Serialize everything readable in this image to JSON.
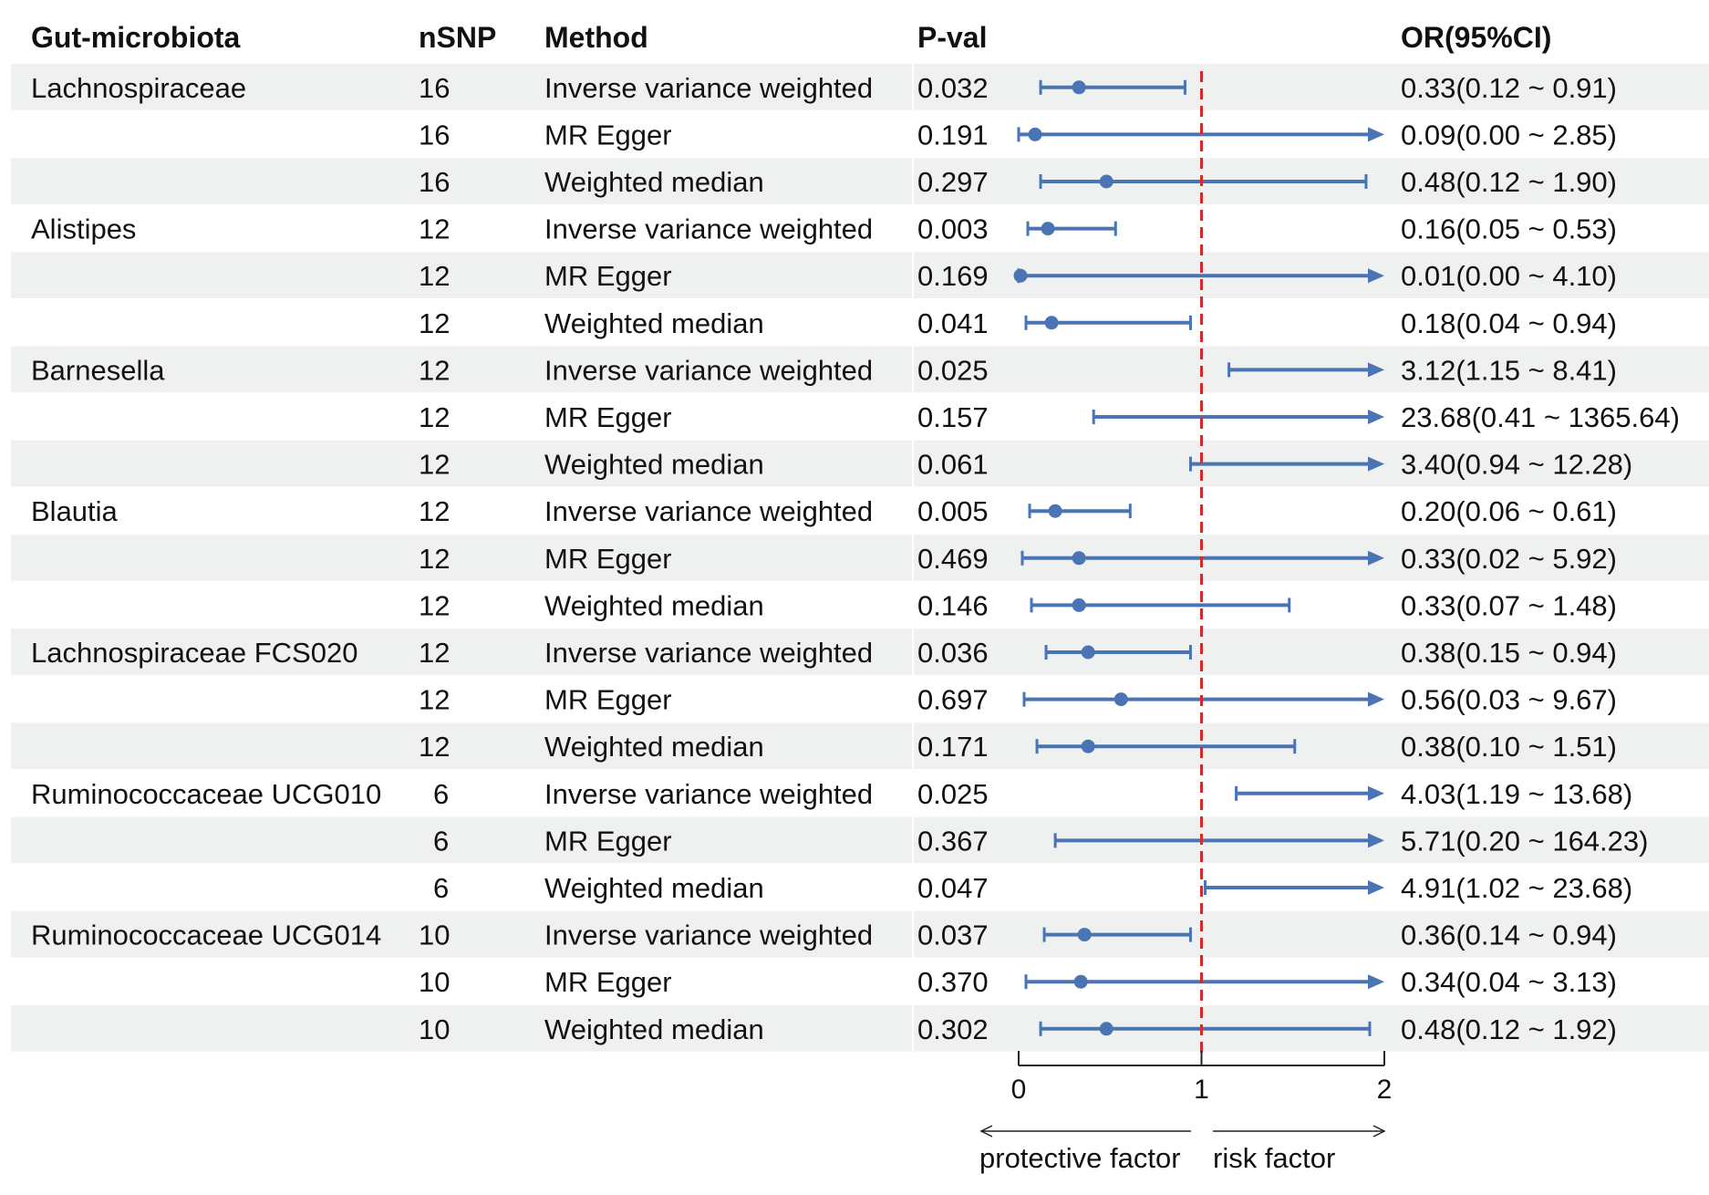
{
  "chart_data": {
    "type": "forest",
    "headers": {
      "taxon": "Gut-microbiota",
      "nsnp": "nSNP",
      "method": "Method",
      "pval": "P-val",
      "or": "OR(95%CI)"
    },
    "reference_line": 1,
    "xlim": [
      0,
      2
    ],
    "x_ticks": [
      "0",
      "1",
      "2"
    ],
    "direction_labels": {
      "left": "protective factor",
      "right": "risk factor"
    },
    "colors": {
      "marker": "#4a74b4",
      "reference": "#d42a2a",
      "band": "#eef1f0",
      "axis": "#222222"
    },
    "rows": [
      {
        "taxon": "Lachnospiraceae",
        "nsnp": "16",
        "method": "Inverse variance weighted",
        "pval": "0.032",
        "or": 0.33,
        "lo": 0.12,
        "hi": 0.91,
        "label": "0.33(0.12 ~ 0.91)"
      },
      {
        "taxon": "",
        "nsnp": "16",
        "method": "MR Egger",
        "pval": "0.191",
        "or": 0.09,
        "lo": 0.0,
        "hi": 2.85,
        "label": "0.09(0.00 ~ 2.85)"
      },
      {
        "taxon": "",
        "nsnp": "16",
        "method": "Weighted median",
        "pval": "0.297",
        "or": 0.48,
        "lo": 0.12,
        "hi": 1.9,
        "label": "0.48(0.12 ~ 1.90)"
      },
      {
        "taxon": "Alistipes",
        "nsnp": "12",
        "method": "Inverse variance weighted",
        "pval": "0.003",
        "or": 0.16,
        "lo": 0.05,
        "hi": 0.53,
        "label": "0.16(0.05 ~ 0.53)"
      },
      {
        "taxon": "",
        "nsnp": "12",
        "method": "MR Egger",
        "pval": "0.169",
        "or": 0.01,
        "lo": 0.0,
        "hi": 4.1,
        "label": "0.01(0.00 ~ 4.10)"
      },
      {
        "taxon": "",
        "nsnp": "12",
        "method": "Weighted median",
        "pval": "0.041",
        "or": 0.18,
        "lo": 0.04,
        "hi": 0.94,
        "label": "0.18(0.04 ~ 0.94)"
      },
      {
        "taxon": "Barnesella",
        "nsnp": "12",
        "method": "Inverse variance weighted",
        "pval": "0.025",
        "or": 3.12,
        "lo": 1.15,
        "hi": 8.41,
        "label": "3.12(1.15 ~ 8.41)"
      },
      {
        "taxon": "",
        "nsnp": "12",
        "method": "MR Egger",
        "pval": "0.157",
        "or": 23.68,
        "lo": 0.41,
        "hi": 1365.64,
        "label": "23.68(0.41 ~ 1365.64)"
      },
      {
        "taxon": "",
        "nsnp": "12",
        "method": "Weighted median",
        "pval": "0.061",
        "or": 3.4,
        "lo": 0.94,
        "hi": 12.28,
        "label": "3.40(0.94 ~ 12.28)"
      },
      {
        "taxon": "Blautia",
        "nsnp": "12",
        "method": "Inverse variance weighted",
        "pval": "0.005",
        "or": 0.2,
        "lo": 0.06,
        "hi": 0.61,
        "label": "0.20(0.06 ~ 0.61)"
      },
      {
        "taxon": "",
        "nsnp": "12",
        "method": "MR Egger",
        "pval": "0.469",
        "or": 0.33,
        "lo": 0.02,
        "hi": 5.92,
        "label": "0.33(0.02 ~ 5.92)"
      },
      {
        "taxon": "",
        "nsnp": "12",
        "method": "Weighted median",
        "pval": "0.146",
        "or": 0.33,
        "lo": 0.07,
        "hi": 1.48,
        "label": "0.33(0.07 ~ 1.48)"
      },
      {
        "taxon": "Lachnospiraceae FCS020",
        "nsnp": "12",
        "method": "Inverse variance weighted",
        "pval": "0.036",
        "or": 0.38,
        "lo": 0.15,
        "hi": 0.94,
        "label": "0.38(0.15 ~ 0.94)"
      },
      {
        "taxon": "",
        "nsnp": "12",
        "method": "MR Egger",
        "pval": "0.697",
        "or": 0.56,
        "lo": 0.03,
        "hi": 9.67,
        "label": "0.56(0.03 ~ 9.67)"
      },
      {
        "taxon": "",
        "nsnp": "12",
        "method": "Weighted median",
        "pval": "0.171",
        "or": 0.38,
        "lo": 0.1,
        "hi": 1.51,
        "label": "0.38(0.10 ~ 1.51)"
      },
      {
        "taxon": "Ruminococcaceae UCG010",
        "nsnp": "6",
        "method": "Inverse variance weighted",
        "pval": "0.025",
        "or": 4.03,
        "lo": 1.19,
        "hi": 13.68,
        "label": "4.03(1.19 ~ 13.68)"
      },
      {
        "taxon": "",
        "nsnp": "6",
        "method": "MR Egger",
        "pval": "0.367",
        "or": 5.71,
        "lo": 0.2,
        "hi": 164.23,
        "label": "5.71(0.20 ~ 164.23)"
      },
      {
        "taxon": "",
        "nsnp": "6",
        "method": "Weighted median",
        "pval": "0.047",
        "or": 4.91,
        "lo": 1.02,
        "hi": 23.68,
        "label": "4.91(1.02 ~ 23.68)"
      },
      {
        "taxon": "Ruminococcaceae UCG014",
        "nsnp": "10",
        "method": "Inverse variance weighted",
        "pval": "0.037",
        "or": 0.36,
        "lo": 0.14,
        "hi": 0.94,
        "label": "0.36(0.14 ~ 0.94)"
      },
      {
        "taxon": "",
        "nsnp": "10",
        "method": "MR Egger",
        "pval": "0.370",
        "or": 0.34,
        "lo": 0.04,
        "hi": 3.13,
        "label": "0.34(0.04 ~ 3.13)"
      },
      {
        "taxon": "",
        "nsnp": "10",
        "method": "Weighted median",
        "pval": "0.302",
        "or": 0.48,
        "lo": 0.12,
        "hi": 1.92,
        "label": "0.48(0.12 ~ 1.92)"
      }
    ]
  }
}
